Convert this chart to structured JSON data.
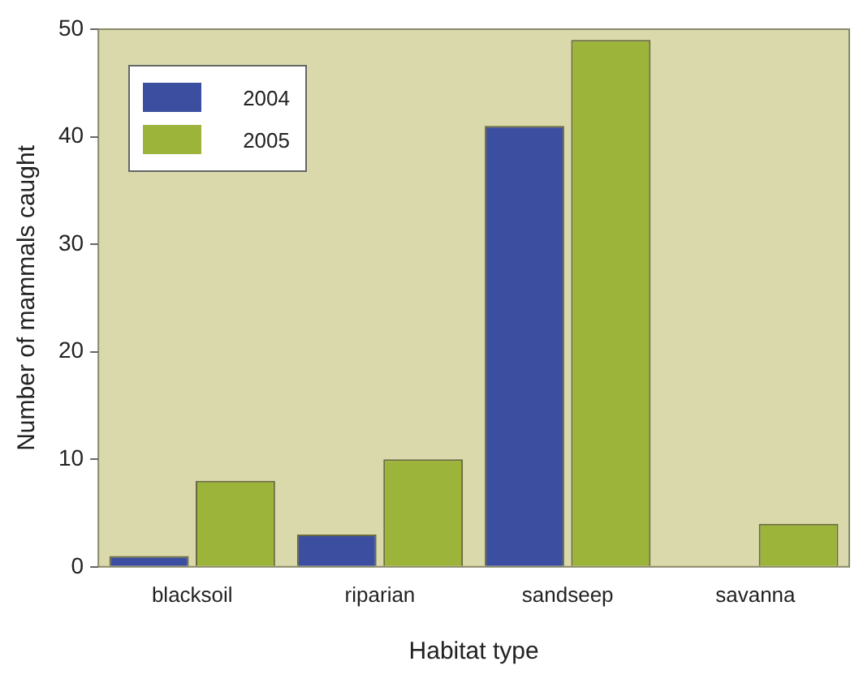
{
  "chart_data": {
    "type": "bar",
    "xlabel": "Habitat type",
    "ylabel": "Number of mammals caught",
    "categories": [
      "blacksoil",
      "riparian",
      "sandseep",
      "savanna"
    ],
    "series": [
      {
        "name": "2004",
        "color": "#3c4ea0",
        "values": [
          1,
          3,
          41,
          0
        ]
      },
      {
        "name": "2005",
        "color": "#9db43a",
        "values": [
          8,
          10,
          49,
          4
        ]
      }
    ],
    "ylim": [
      0,
      50
    ],
    "yticks": [
      0,
      10,
      20,
      30,
      40,
      50
    ],
    "grid": false,
    "legend": "top left"
  }
}
